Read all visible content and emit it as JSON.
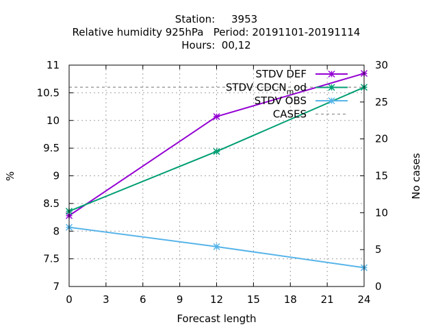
{
  "chart_data": {
    "type": "line",
    "title_lines": [
      "Station:     3953",
      "Relative humidity 925hPa   Period: 20191101-20191114",
      "Hours:  00,12"
    ],
    "xlabel": "Forecast length",
    "ylabel": "%",
    "y2label": "No cases",
    "xlim": [
      0,
      24
    ],
    "ylim": [
      7,
      11
    ],
    "y2lim": [
      0,
      30
    ],
    "xticks": [
      0,
      3,
      6,
      9,
      12,
      15,
      18,
      21,
      24
    ],
    "yticks": [
      7,
      7.5,
      8,
      8.5,
      9,
      9.5,
      10,
      10.5,
      11
    ],
    "yticklabels": [
      "7",
      "7.5",
      "8",
      "8.5",
      "9",
      "9.5",
      "10",
      "10.5",
      "11"
    ],
    "y2ticks": [
      0,
      5,
      10,
      15,
      20,
      25,
      30
    ],
    "grid": true,
    "legend_position": "top-right",
    "series": [
      {
        "name": "STDV DEF",
        "axis": "y",
        "x": [
          0,
          12,
          24
        ],
        "values": [
          8.28,
          10.07,
          10.85
        ],
        "color": "#9400d3",
        "marker": "star"
      },
      {
        "name": "STDV CDCN_mod",
        "label_main": "STDV CDCN",
        "label_sub": "m",
        "label_tail": "od",
        "axis": "y",
        "x": [
          0,
          12,
          24
        ],
        "values": [
          8.36,
          9.44,
          10.6
        ],
        "color": "#009e73",
        "marker": "star"
      },
      {
        "name": "STDV OBS",
        "axis": "y",
        "x": [
          0,
          12,
          24
        ],
        "values": [
          8.07,
          7.72,
          7.34
        ],
        "color": "#56b4e9",
        "marker": "star"
      },
      {
        "name": "CASES",
        "axis": "y2",
        "x": [
          0,
          12,
          24
        ],
        "values": [
          27,
          27,
          27
        ],
        "color": "#a0a0a0",
        "marker": "none",
        "dashed": true
      }
    ]
  }
}
